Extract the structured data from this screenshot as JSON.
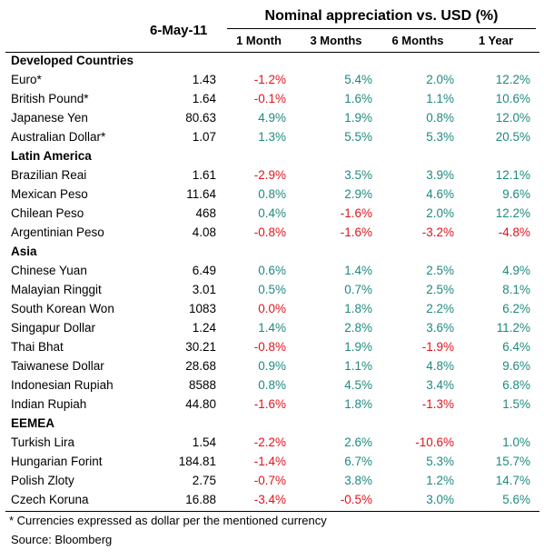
{
  "header": {
    "date": "6-May-11",
    "title": "Nominal appreciation vs. USD (%)",
    "columns": [
      "1 Month",
      "3 Months",
      "6 Months",
      "1 Year"
    ]
  },
  "groups": [
    {
      "name": "Developed Countries",
      "rows": [
        [
          "Euro*",
          "1.43",
          "-1.2%",
          "5.4%",
          "2.0%",
          "12.2%"
        ],
        [
          "British Pound*",
          "1.64",
          "-0.1%",
          "1.6%",
          "1.1%",
          "10.6%"
        ],
        [
          "Japanese Yen",
          "80.63",
          "4.9%",
          "1.9%",
          "0.8%",
          "12.0%"
        ],
        [
          "Australian Dollar*",
          "1.07",
          "1.3%",
          "5.5%",
          "5.3%",
          "20.5%"
        ]
      ]
    },
    {
      "name": "Latin America",
      "rows": [
        [
          "Brazilian Reai",
          "1.61",
          "-2.9%",
          "3.5%",
          "3.9%",
          "12.1%"
        ],
        [
          "Mexican Peso",
          "11.64",
          "0.8%",
          "2.9%",
          "4.6%",
          "9.6%"
        ],
        [
          "Chilean Peso",
          "468",
          "0.4%",
          "-1.6%",
          "2.0%",
          "12.2%"
        ],
        [
          "Argentinian Peso",
          "4.08",
          "-0.8%",
          "-1.6%",
          "-3.2%",
          "-4.8%"
        ]
      ]
    },
    {
      "name": "Asia",
      "rows": [
        [
          "Chinese Yuan",
          "6.49",
          "0.6%",
          "1.4%",
          "2.5%",
          "4.9%"
        ],
        [
          "Malayian Ringgit",
          "3.01",
          "0.5%",
          "0.7%",
          "2.5%",
          "8.1%"
        ],
        [
          "South Korean Won",
          "1083",
          "0.0%",
          "1.8%",
          "2.2%",
          "6.2%"
        ],
        [
          "Singapur Dollar",
          "1.24",
          "1.4%",
          "2.8%",
          "3.6%",
          "11.2%"
        ],
        [
          "Thai Bhat",
          "30.21",
          "-0.8%",
          "1.9%",
          "-1.9%",
          "6.4%"
        ],
        [
          "Taiwanese Dollar",
          "28.68",
          "0.9%",
          "1.1%",
          "4.8%",
          "9.6%"
        ],
        [
          "Indonesian Rupiah",
          "8588",
          "0.8%",
          "4.5%",
          "3.4%",
          "6.8%"
        ],
        [
          "Indian Rupiah",
          "44.80",
          "-1.6%",
          "1.8%",
          "-1.3%",
          "1.5%"
        ]
      ]
    },
    {
      "name": "EEMEA",
      "rows": [
        [
          "Turkish Lira",
          "1.54",
          "-2.2%",
          "2.6%",
          "-10.6%",
          "1.0%"
        ],
        [
          "Hungarian Forint",
          "184.81",
          "-1.4%",
          "6.7%",
          "5.3%",
          "15.7%"
        ],
        [
          "Polish Zloty",
          "2.75",
          "-0.7%",
          "3.8%",
          "1.2%",
          "14.7%"
        ],
        [
          "Czech Koruna",
          "16.88",
          "-3.4%",
          "-0.5%",
          "3.0%",
          "5.6%"
        ]
      ]
    }
  ],
  "footnote": "* Currencies expressed as dollar per the mentioned currency",
  "source": "Source: Bloomberg"
}
